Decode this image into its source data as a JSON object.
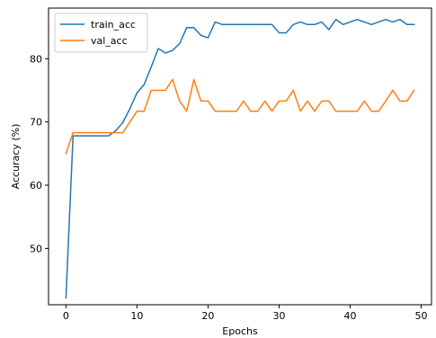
{
  "chart_data": {
    "type": "line",
    "xlabel": "Epochs",
    "ylabel": "Accuracy (%)",
    "xlim": [
      -2.45,
      51.45
    ],
    "ylim": [
      41.1,
      88.0
    ],
    "xticks": [
      0,
      10,
      20,
      30,
      40,
      50
    ],
    "xtick_labels": [
      "0",
      "10",
      "20",
      "30",
      "40",
      "50"
    ],
    "yticks": [
      50,
      60,
      70,
      80
    ],
    "ytick_labels": [
      "50",
      "60",
      "70",
      "80"
    ],
    "legend_position": "top-left",
    "grid": false,
    "x": [
      0,
      1,
      2,
      3,
      4,
      5,
      6,
      7,
      8,
      9,
      10,
      11,
      12,
      13,
      14,
      15,
      16,
      17,
      18,
      19,
      20,
      21,
      22,
      23,
      24,
      25,
      26,
      27,
      28,
      29,
      30,
      31,
      32,
      33,
      34,
      35,
      36,
      37,
      38,
      39,
      40,
      41,
      42,
      43,
      44,
      45,
      46,
      47,
      48,
      49
    ],
    "series": [
      {
        "name": "train_acc",
        "color": "#1f77b4",
        "values": [
          42.2,
          67.8,
          67.8,
          67.8,
          67.8,
          67.8,
          67.8,
          68.6,
          69.9,
          72.1,
          74.6,
          75.9,
          78.7,
          81.6,
          80.9,
          81.3,
          82.4,
          84.9,
          84.9,
          83.7,
          83.3,
          85.8,
          85.4,
          85.4,
          85.4,
          85.4,
          85.4,
          85.4,
          85.4,
          85.4,
          84.1,
          84.1,
          85.4,
          85.8,
          85.4,
          85.4,
          85.8,
          84.6,
          86.2,
          85.4,
          85.8,
          86.2,
          85.8,
          85.4,
          85.8,
          86.2,
          85.8,
          86.2,
          85.4,
          85.4
        ]
      },
      {
        "name": "val_acc",
        "color": "#ff7f0e",
        "values": [
          65.0,
          68.3,
          68.3,
          68.3,
          68.3,
          68.3,
          68.3,
          68.3,
          68.3,
          70.0,
          71.7,
          71.7,
          75.0,
          75.0,
          75.0,
          76.7,
          73.3,
          71.7,
          76.7,
          73.3,
          73.3,
          71.7,
          71.7,
          71.7,
          71.7,
          73.3,
          71.7,
          71.7,
          73.3,
          71.7,
          73.3,
          73.3,
          75.0,
          71.7,
          73.3,
          71.7,
          73.3,
          73.3,
          71.7,
          71.7,
          71.7,
          71.7,
          73.3,
          71.7,
          71.7,
          73.3,
          75.0,
          73.3,
          73.3,
          75.0
        ]
      }
    ]
  }
}
